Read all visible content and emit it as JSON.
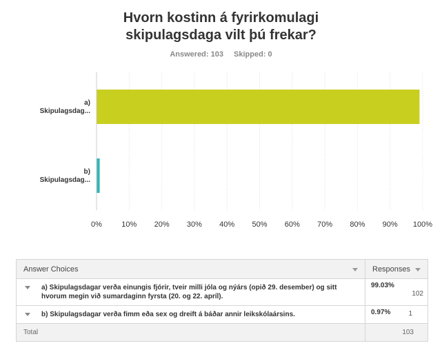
{
  "title_line1": "Hvorn kostinn á fyrirkomulagi",
  "title_line2": "skipulagsdaga vilt þú frekar?",
  "answered_label": "Answered: 103",
  "skipped_label": "Skipped: 0",
  "colors": {
    "bar_a": "#c8cf1f",
    "bar_b": "#35b4b4",
    "grid": "#dcdcdc"
  },
  "chart_data": {
    "type": "bar",
    "orientation": "horizontal",
    "categories": [
      [
        "a)",
        "Skipulagsdag..."
      ],
      [
        "b)",
        "Skipulagsdag..."
      ]
    ],
    "values": [
      99.03,
      0.97
    ],
    "xlim": [
      0,
      100
    ],
    "ticks": [
      "0%",
      "10%",
      "20%",
      "30%",
      "40%",
      "50%",
      "60%",
      "70%",
      "80%",
      "90%",
      "100%"
    ],
    "grid": true
  },
  "table": {
    "col_choices": "Answer Choices",
    "col_responses": "Responses",
    "rows": [
      {
        "choice": "a) Skipulagsdagar verða einungis fjórir, tveir milli jóla og nýárs (opið 29. desember) og sitt hvorum megin við sumardaginn fyrsta (20. og 22. apríl).",
        "percent": "99.03%",
        "count": "102"
      },
      {
        "choice": "b) Skipulagsdagar verða fimm eða sex og dreift á báðar annir leikskólaársins.",
        "percent": "0.97%",
        "count": "1"
      }
    ],
    "total_label": "Total",
    "total_value": "103"
  }
}
